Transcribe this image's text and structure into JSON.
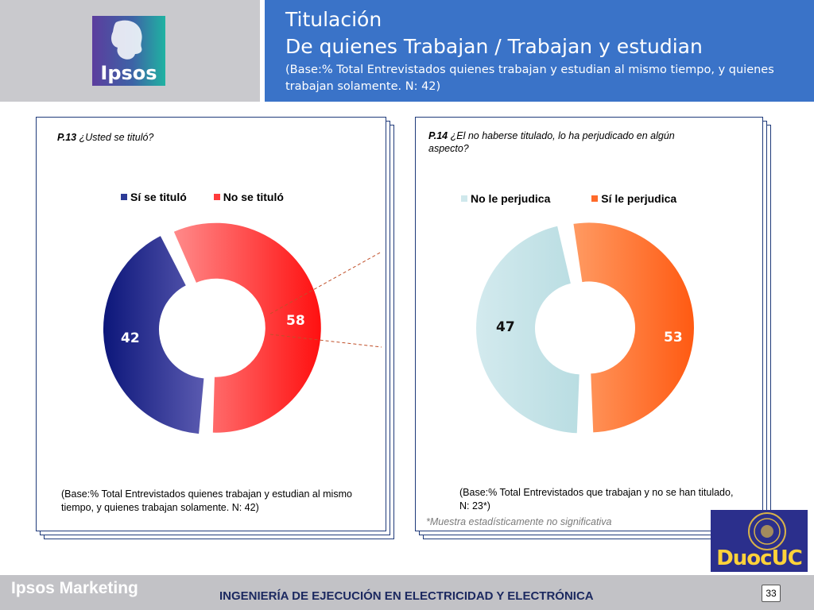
{
  "header": {
    "title_line1": "Titulación",
    "title_line2": "De quienes Trabajan / Trabajan y estudian",
    "subtitle": "(Base:% Total Entrevistados quienes trabajan y estudian al mismo tiempo, y quienes trabajan solamente. N: 42)",
    "logo_text": "Ipsos"
  },
  "left_panel": {
    "question_number": "P.13",
    "question_text": "¿Usted se tituló?",
    "base_text": "(Base:% Total Entrevistados quienes trabajan y estudian al mismo tiempo, y quienes trabajan solamente. N: 42)"
  },
  "right_panel": {
    "question_number": "P.14",
    "question_text": "¿El no haberse titulado, lo ha perjudicado en algún aspecto?",
    "base_text": "(Base:% Total Entrevistados que  trabajan y no se han titulado, N: 23*)",
    "footnote": "*Muestra estadísticamente no significativa"
  },
  "chart_data": [
    {
      "type": "pie",
      "title": "",
      "categories": [
        "Sí se tituló",
        "No se tituló"
      ],
      "values": [
        42,
        58
      ],
      "colors": [
        "#1e2a8a",
        "#ff2f37"
      ],
      "legend": "top"
    },
    {
      "type": "pie",
      "title": "",
      "categories": [
        "No le perjudica",
        "Sí le perjudica"
      ],
      "values": [
        47,
        53
      ],
      "colors": [
        "#cfe8ec",
        "#ff6a2a"
      ],
      "legend": "top"
    }
  ],
  "footer": {
    "brand": "Ipsos Marketing",
    "title": "INGENIERÍA DE EJECUCIÓN EN ELECTRICIDAD Y ELECTRÓNICA",
    "page_number": "33",
    "partner_logo_text": "DuocUC"
  }
}
